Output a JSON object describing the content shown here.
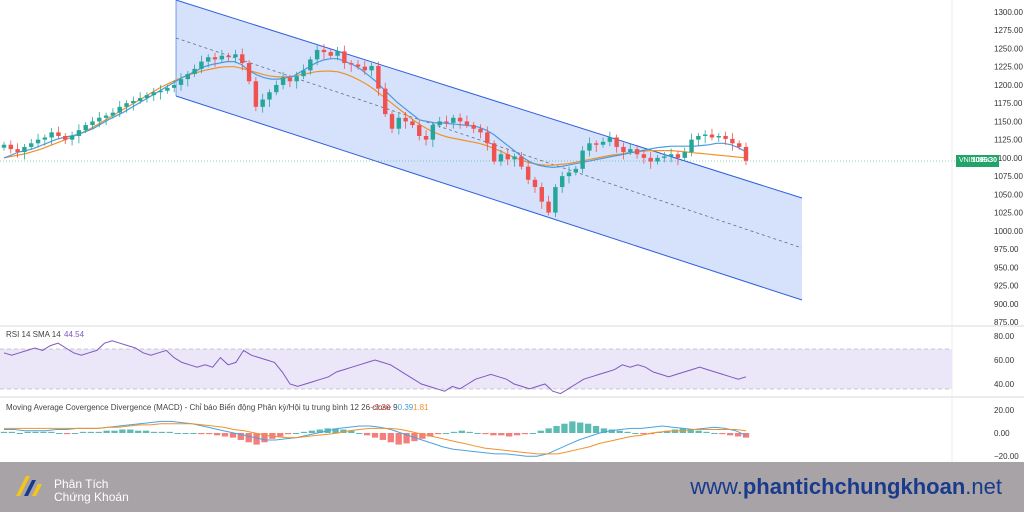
{
  "chart_data": [
    {
      "type": "candlestick",
      "symbol": "VNINDEX",
      "last_price": "1096.30",
      "y_ticks": [
        "1300.00",
        "1275.00",
        "1250.00",
        "1225.00",
        "1200.00",
        "1175.00",
        "1150.00",
        "1125.00",
        "1100.00",
        "1075.00",
        "1050.00",
        "1025.00",
        "1000.00",
        "975.00",
        "950.00",
        "925.00",
        "900.00",
        "875.00"
      ],
      "ylim": [
        875,
        1300
      ],
      "closes": [
        1118,
        1112,
        1108,
        1115,
        1120,
        1125,
        1128,
        1135,
        1130,
        1125,
        1130,
        1138,
        1145,
        1150,
        1155,
        1158,
        1162,
        1170,
        1175,
        1178,
        1182,
        1186,
        1190,
        1192,
        1196,
        1200,
        1208,
        1215,
        1222,
        1232,
        1238,
        1235,
        1240,
        1238,
        1242,
        1230,
        1205,
        1170,
        1180,
        1190,
        1200,
        1210,
        1205,
        1212,
        1220,
        1235,
        1248,
        1245,
        1240,
        1246,
        1230,
        1228,
        1225,
        1220,
        1226,
        1195,
        1160,
        1140,
        1155,
        1150,
        1145,
        1130,
        1125,
        1145,
        1150,
        1148,
        1155,
        1150,
        1145,
        1140,
        1135,
        1120,
        1095,
        1105,
        1098,
        1102,
        1088,
        1070,
        1060,
        1040,
        1025,
        1060,
        1075,
        1080,
        1085,
        1110,
        1120,
        1118,
        1122,
        1128,
        1115,
        1108,
        1112,
        1105,
        1100,
        1095,
        1100,
        1102,
        1105,
        1100,
        1108,
        1125,
        1130,
        1132,
        1128,
        1130,
        1126,
        1120,
        1115,
        1096
      ],
      "ma_fast": [
        1100,
        1104,
        1108,
        1110,
        1113,
        1117,
        1121,
        1125,
        1128,
        1130,
        1132,
        1136,
        1140,
        1146,
        1152,
        1157,
        1162,
        1168,
        1174,
        1180,
        1186,
        1192,
        1198,
        1204,
        1210,
        1215,
        1220,
        1225,
        1228,
        1230,
        1232,
        1232,
        1228,
        1220,
        1214,
        1210,
        1208,
        1208,
        1210,
        1212,
        1218,
        1224,
        1230,
        1234,
        1236,
        1236,
        1232,
        1228,
        1222,
        1214,
        1206,
        1196,
        1186,
        1176,
        1168,
        1160,
        1152,
        1150,
        1148,
        1148,
        1147,
        1146,
        1145,
        1144,
        1142,
        1138,
        1132,
        1124,
        1116,
        1108,
        1100,
        1094,
        1090,
        1088,
        1087,
        1088,
        1090,
        1092,
        1094,
        1096,
        1098,
        1100,
        1102,
        1104,
        1106,
        1108,
        1110,
        1112,
        1114,
        1115,
        1116,
        1116,
        1116,
        1116,
        1117,
        1118,
        1120,
        1120,
        1118,
        1114,
        1108
      ],
      "ma_slow": [
        1100,
        1102,
        1104,
        1106,
        1109,
        1112,
        1116,
        1120,
        1124,
        1128,
        1132,
        1137,
        1142,
        1148,
        1154,
        1160,
        1166,
        1172,
        1178,
        1184,
        1190,
        1196,
        1201,
        1206,
        1210,
        1214,
        1217,
        1220,
        1222,
        1224,
        1225,
        1225,
        1223,
        1220,
        1217,
        1214,
        1212,
        1211,
        1211,
        1212,
        1214,
        1216,
        1218,
        1219,
        1219,
        1218,
        1215,
        1211,
        1206,
        1200,
        1193,
        1185,
        1177,
        1169,
        1161,
        1153,
        1146,
        1140,
        1135,
        1131,
        1128,
        1126,
        1124,
        1122,
        1120,
        1117,
        1113,
        1109,
        1104,
        1100,
        1096,
        1093,
        1091,
        1090,
        1090,
        1091,
        1092,
        1094,
        1096,
        1098,
        1100,
        1102,
        1104,
        1105,
        1107,
        1108,
        1109,
        1110,
        1110,
        1110,
        1110,
        1109,
        1108,
        1107,
        1106,
        1105,
        1104,
        1103,
        1102,
        1101,
        1100
      ]
    },
    {
      "type": "line",
      "label": "RSI 14 SMA 14",
      "value": "44.54",
      "y_ticks": [
        "80.00",
        "60.00",
        "40.00"
      ],
      "ylim": [
        30,
        85
      ],
      "values": [
        66,
        64,
        66,
        68,
        70,
        68,
        72,
        74,
        70,
        66,
        64,
        66,
        68,
        74,
        76,
        74,
        72,
        70,
        66,
        64,
        66,
        68,
        62,
        58,
        56,
        54,
        56,
        54,
        62,
        56,
        58,
        68,
        64,
        62,
        60,
        58,
        50,
        40,
        38,
        40,
        42,
        44,
        46,
        50,
        52,
        54,
        56,
        58,
        60,
        58,
        56,
        52,
        48,
        44,
        40,
        38,
        36,
        34,
        38,
        36,
        40,
        44,
        46,
        48,
        46,
        44,
        40,
        38,
        36,
        38,
        40,
        34,
        32,
        36,
        40,
        44,
        46,
        48,
        50,
        52,
        56,
        54,
        56,
        54,
        50,
        48,
        46,
        48,
        50,
        52,
        54,
        52,
        50,
        48,
        46,
        44,
        46
      ],
      "band": [
        40,
        70
      ]
    },
    {
      "type": "histogram",
      "label": "Moving Average Covergence Divergence (MACD) - Chỉ báo Biến động Phân kỳ/Hội tụ trung bình 12 26 close 9",
      "values_text": [
        "−2.20",
        "−0.39",
        "1.81"
      ],
      "y_ticks": [
        "20.00",
        "0.00",
        "−20.00"
      ],
      "ylim": [
        -25,
        25
      ],
      "hist": [
        1,
        1,
        0,
        1,
        1,
        1,
        1,
        0,
        -1,
        0,
        1,
        1,
        1,
        2,
        2,
        3,
        3,
        2,
        2,
        1,
        1,
        1,
        0,
        0,
        0,
        -1,
        -1,
        -2,
        -3,
        -4,
        -6,
        -8,
        -10,
        -8,
        -5,
        -3,
        -1,
        0,
        1,
        2,
        3,
        4,
        4,
        3,
        2,
        0,
        -2,
        -4,
        -6,
        -8,
        -10,
        -9,
        -7,
        -5,
        -3,
        -1,
        0,
        1,
        2,
        1,
        0,
        -1,
        -2,
        -2,
        -3,
        -2,
        -1,
        0,
        2,
        4,
        6,
        8,
        10,
        9,
        8,
        6,
        4,
        3,
        2,
        1,
        0,
        -1,
        -1,
        1,
        2,
        3,
        4,
        3,
        2,
        1,
        0,
        -1,
        -2,
        -3,
        -4
      ],
      "macd": [
        3,
        3,
        2,
        2,
        2,
        3,
        3,
        4,
        4,
        4,
        5,
        6,
        7,
        8,
        9,
        10,
        10,
        9,
        8,
        6,
        4,
        2,
        0,
        -2,
        -4,
        -6,
        -6,
        -5,
        -4,
        -2,
        0,
        2,
        4,
        5,
        6,
        6,
        5,
        3,
        0,
        -3,
        -6,
        -9,
        -12,
        -14,
        -15,
        -16,
        -17,
        -18,
        -18,
        -19,
        -20,
        -20,
        -18,
        -14,
        -10,
        -6,
        -3,
        0,
        2,
        3,
        4,
        4,
        5,
        6,
        5,
        4,
        3,
        4,
        5,
        4,
        2,
        -2
      ],
      "signal": [
        4,
        4,
        4,
        4,
        4,
        4,
        4,
        4,
        4,
        4,
        5,
        5,
        6,
        7,
        7,
        8,
        8,
        8,
        8,
        7,
        6,
        5,
        3,
        2,
        0,
        -2,
        -3,
        -4,
        -4,
        -3,
        -2,
        -1,
        0,
        2,
        3,
        4,
        4,
        4,
        3,
        1,
        -1,
        -3,
        -5,
        -7,
        -9,
        -11,
        -13,
        -14,
        -15,
        -16,
        -17,
        -18,
        -18,
        -18,
        -16,
        -14,
        -12,
        -9,
        -7,
        -5,
        -3,
        -2,
        0,
        1,
        2,
        2,
        3,
        3,
        3,
        3,
        3,
        2
      ]
    }
  ],
  "footer": {
    "logo_line1": "Phân Tích",
    "logo_line2": "Chứng Khoán",
    "url_prefix": "www.",
    "url_bold": "phantichchungkhoan",
    "url_suffix": ".net"
  },
  "colors": {
    "up": "#26a69a",
    "down": "#ef5350",
    "channel_fill": "#cfdcfb",
    "channel_line": "#2f5fe0",
    "ma_fast": "#4a9be0",
    "ma_slow": "#f0922b",
    "rsi": "#7e57c2",
    "macd_line": "#4aa3df",
    "signal_line": "#f0922b",
    "footer_bg": "#a7a3a6",
    "url": "#1a3a8c"
  }
}
